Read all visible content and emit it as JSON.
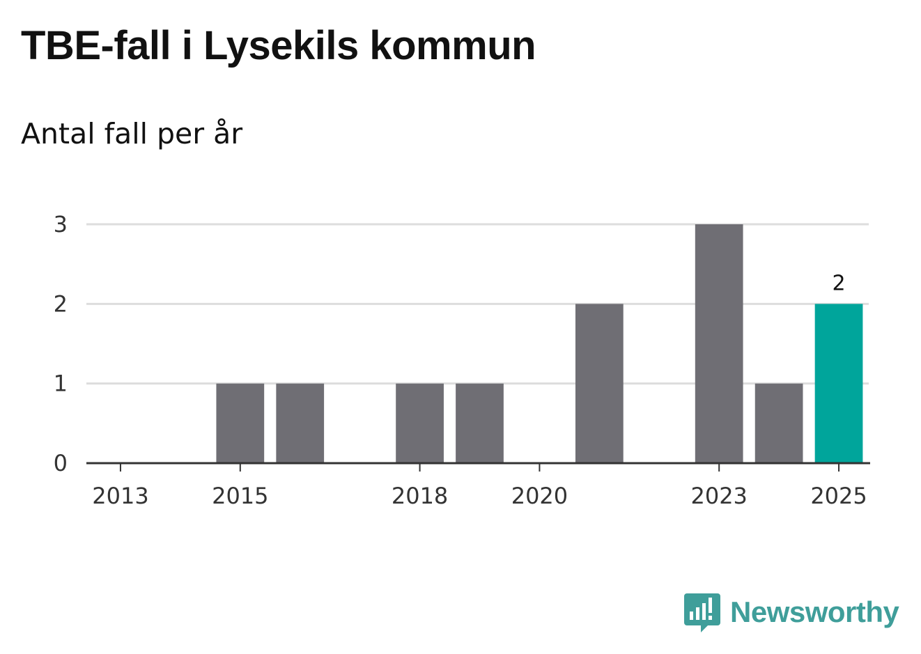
{
  "title": "TBE-fall i Lysekils kommun",
  "subtitle": "Antal fall per år",
  "brand": "Newsworthy",
  "colors": {
    "bar_default": "#6f6e74",
    "bar_highlight": "#00a59b",
    "grid": "#dddddd",
    "axis": "#333333",
    "brand": "#3f9e9a"
  },
  "chart_data": {
    "type": "bar",
    "title": "TBE-fall i Lysekils kommun",
    "subtitle": "Antal fall per år",
    "xlabel": "",
    "ylabel": "",
    "categories": [
      "2013",
      "2014",
      "2015",
      "2016",
      "2017",
      "2018",
      "2019",
      "2020",
      "2021",
      "2022",
      "2023",
      "2024",
      "2025"
    ],
    "values": [
      0,
      0,
      1,
      1,
      0,
      1,
      1,
      0,
      2,
      0,
      3,
      1,
      2
    ],
    "highlight": "2025",
    "data_labels": [
      {
        "category": "2025",
        "text": "2"
      }
    ],
    "x_tick_labels": [
      "2013",
      "2015",
      "2018",
      "2020",
      "2023",
      "2025"
    ],
    "y_ticks": [
      "0",
      "1",
      "2",
      "3"
    ],
    "ylim": [
      0,
      3
    ],
    "grid": true
  }
}
